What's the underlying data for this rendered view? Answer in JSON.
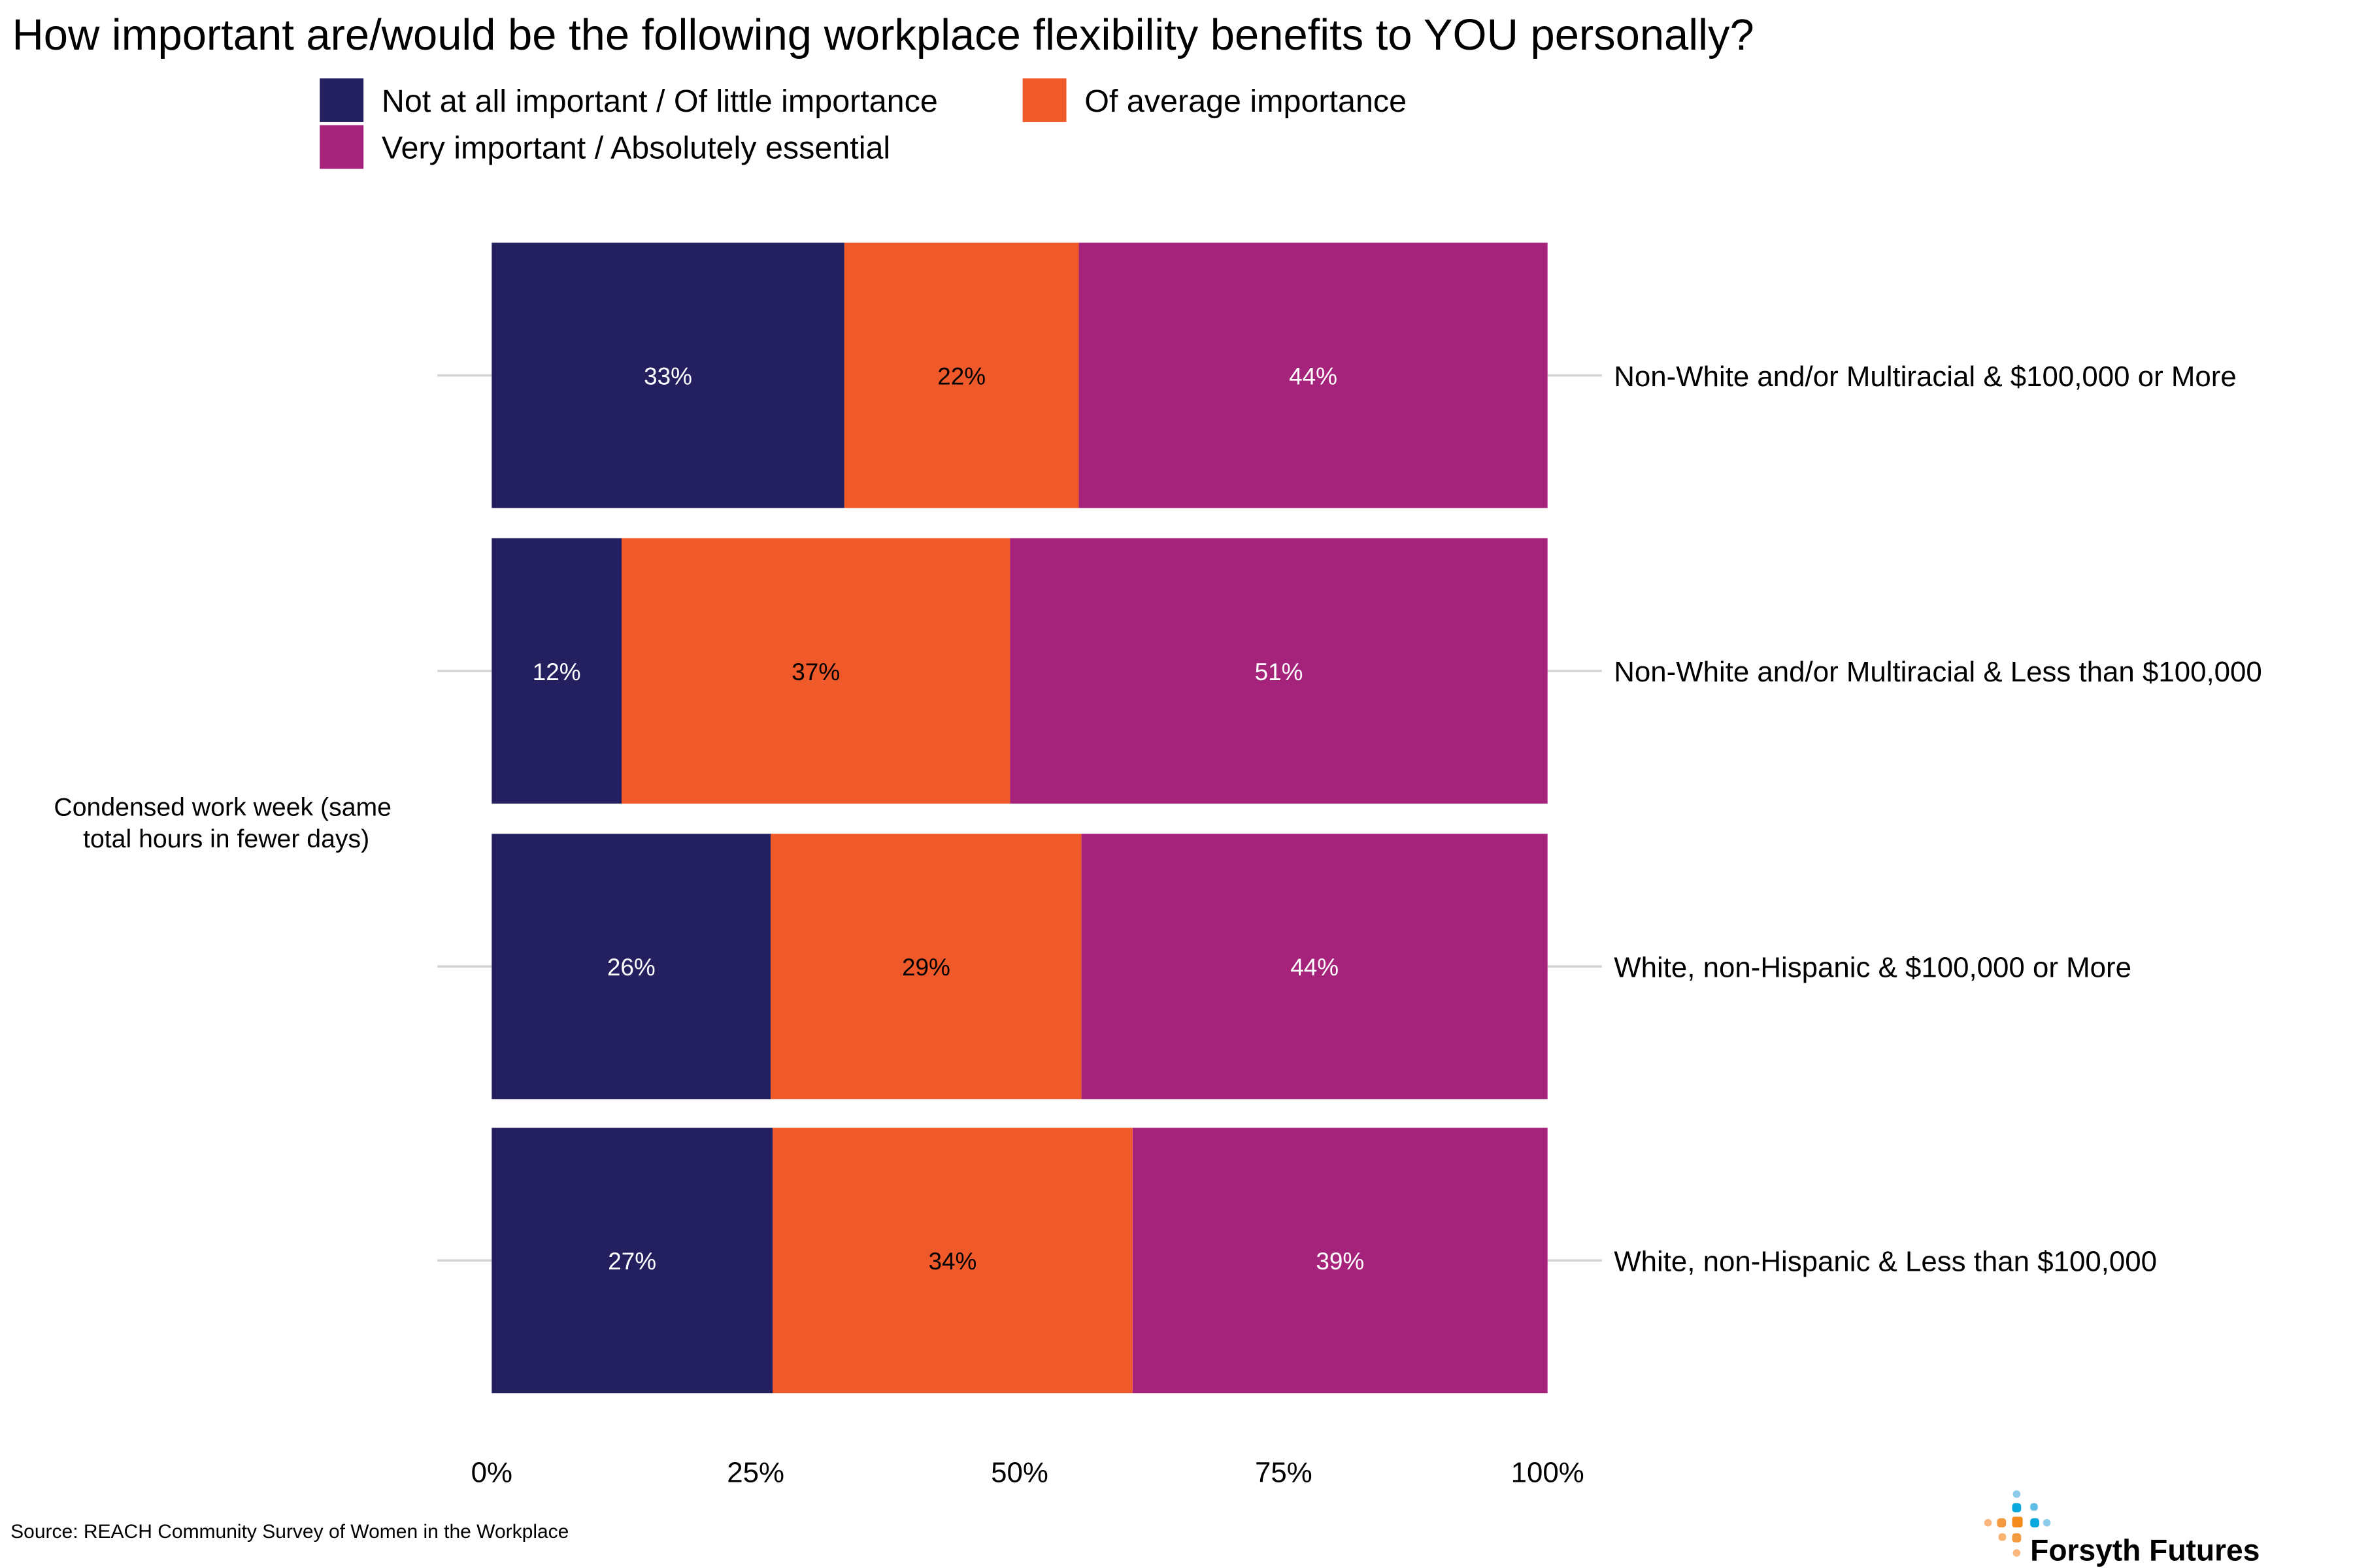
{
  "chart_data": {
    "type": "bar",
    "orientation": "horizontal",
    "stacked": true,
    "title": "How important are/would be the following workplace flexibility benefits to YOU personally?",
    "facet_label": "Condensed work week (same total hours in fewer days)",
    "categories": [
      "Non-White and/or Multiracial & $100,000 or More",
      "Non-White and/or Multiracial & Less than $100,000",
      "White, non-Hispanic & $100,000 or More",
      "White, non-Hispanic & Less than $100,000"
    ],
    "series": [
      {
        "name": "Not at all important / Of little importance",
        "color": "#242060",
        "label_color": "#ffffff",
        "values": [
          33.4,
          12.3,
          26.4,
          26.6
        ],
        "labels": [
          "33%",
          "12%",
          "26%",
          "27%"
        ]
      },
      {
        "name": "Of average importance",
        "color": "#f05a2b",
        "label_color": "#000000",
        "values": [
          22.2,
          36.8,
          29.4,
          34.1
        ],
        "labels": [
          "22%",
          "37%",
          "29%",
          "34%"
        ]
      },
      {
        "name": "Very important / Absolutely essential",
        "color": "#a6237b",
        "label_color": "#ffffff",
        "values": [
          44.4,
          50.9,
          44.1,
          39.3
        ],
        "labels": [
          "44%",
          "51%",
          "44%",
          "39%"
        ]
      }
    ],
    "xlim": [
      0,
      100
    ],
    "x_ticks": [
      "0%",
      "25%",
      "50%",
      "75%",
      "100%"
    ],
    "grid": false,
    "legend_position": "top"
  },
  "source": "Source: REACH Community Survey of Women in the Workplace",
  "logo_text": "Forsyth Futures"
}
